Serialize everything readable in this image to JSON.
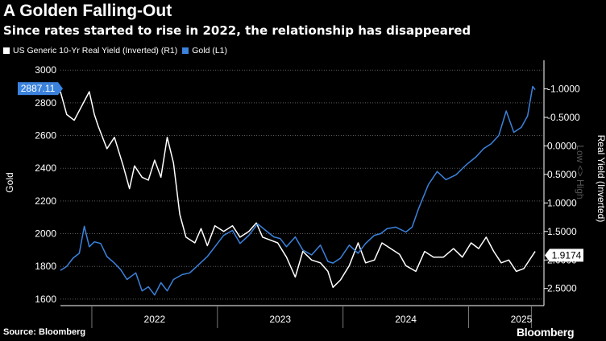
{
  "chart_data": {
    "type": "line",
    "title": "A Golden Falling-Out",
    "subtitle": "Since rates started to rise in 2022, the relationship has disappeared",
    "legend_position": "top-left",
    "source": "Source: Bloomberg",
    "brand": "Bloomberg",
    "left_axis": {
      "label": "Gold",
      "range": [
        1560,
        3060
      ],
      "ticks": [
        "1600",
        "1800",
        "2000",
        "2200",
        "2400",
        "2600",
        "2800",
        "3000"
      ]
    },
    "right_axis": {
      "label": "Real Yield (Inverted)",
      "annotation": "Low <> High",
      "inverted": true,
      "range": [
        -1.5,
        2.8
      ],
      "ticks": [
        "-1.0000",
        "-0.5000",
        "0.0000",
        "0.5000",
        "1.0000",
        "1.5000",
        "2.0000",
        "2.5000"
      ]
    },
    "x_axis": {
      "range": [
        2021.25,
        2025.1
      ],
      "ticks": [
        "2022",
        "2023",
        "2024",
        "2025"
      ],
      "tick_positions": [
        2021.5,
        2022.5,
        2023.5,
        2024.5,
        2025.0
      ],
      "label_positions": [
        2022.0,
        2023.0,
        2024.0,
        2024.92
      ]
    },
    "grid": true,
    "series": [
      {
        "name": "US Generic 10-Yr Real Yield (Inverted) (R1)",
        "axis": "right",
        "color": "#ffffff",
        "last_value_label": "1.9174",
        "x": [
          2021.25,
          2021.3,
          2021.36,
          2021.42,
          2021.48,
          2021.52,
          2021.55,
          2021.62,
          2021.68,
          2021.75,
          2021.8,
          2021.84,
          2021.9,
          2021.95,
          2022.0,
          2022.05,
          2022.1,
          2022.15,
          2022.2,
          2022.25,
          2022.32,
          2022.37,
          2022.42,
          2022.48,
          2022.55,
          2022.62,
          2022.68,
          2022.75,
          2022.81,
          2022.86,
          2022.92,
          2022.98,
          2023.05,
          2023.12,
          2023.18,
          2023.25,
          2023.32,
          2023.38,
          2023.42,
          2023.48,
          2023.55,
          2023.62,
          2023.68,
          2023.75,
          2023.81,
          2023.88,
          2023.95,
          2024.0,
          2024.08,
          2024.15,
          2024.22,
          2024.3,
          2024.38,
          2024.45,
          2024.52,
          2024.58,
          2024.64,
          2024.7,
          2024.76,
          2024.82,
          2024.88,
          2024.94,
          2025.0,
          2025.03
        ],
        "values": [
          -0.95,
          -0.55,
          -0.45,
          -0.7,
          -0.95,
          -0.55,
          -0.35,
          0.05,
          -0.15,
          0.35,
          0.75,
          0.35,
          0.55,
          0.6,
          0.25,
          0.55,
          -0.15,
          0.3,
          1.2,
          1.6,
          1.7,
          1.45,
          1.75,
          1.4,
          1.5,
          1.4,
          1.6,
          1.5,
          1.35,
          1.6,
          1.65,
          1.7,
          1.95,
          2.3,
          1.85,
          2.0,
          2.05,
          2.2,
          2.48,
          2.35,
          2.1,
          1.7,
          2.05,
          2.0,
          1.7,
          1.8,
          1.9,
          2.1,
          2.2,
          1.85,
          1.95,
          1.95,
          1.8,
          1.95,
          1.7,
          1.8,
          1.6,
          1.85,
          2.05,
          2.0,
          2.2,
          2.15,
          1.95,
          1.85
        ]
      },
      {
        "name": "Gold (L1)",
        "axis": "left",
        "color": "#3b82dc",
        "last_value_label": "2887.11",
        "x": [
          2021.25,
          2021.3,
          2021.35,
          2021.4,
          2021.44,
          2021.48,
          2021.52,
          2021.57,
          2021.62,
          2021.68,
          2021.73,
          2021.78,
          2021.85,
          2021.9,
          2021.95,
          2022.0,
          2022.05,
          2022.1,
          2022.15,
          2022.22,
          2022.28,
          2022.35,
          2022.42,
          2022.48,
          2022.55,
          2022.62,
          2022.68,
          2022.75,
          2022.82,
          2022.9,
          2022.95,
          2023.0,
          2023.05,
          2023.12,
          2023.18,
          2023.25,
          2023.32,
          2023.38,
          2023.42,
          2023.48,
          2023.55,
          2023.62,
          2023.68,
          2023.75,
          2023.8,
          2023.85,
          2023.92,
          2024.0,
          2024.05,
          2024.1,
          2024.18,
          2024.25,
          2024.32,
          2024.4,
          2024.48,
          2024.56,
          2024.62,
          2024.68,
          2024.74,
          2024.8,
          2024.86,
          2024.92,
          2024.97,
          2025.01,
          2025.03
        ],
        "values": [
          1775,
          1800,
          1850,
          1880,
          2045,
          1920,
          1950,
          1940,
          1860,
          1820,
          1780,
          1720,
          1760,
          1650,
          1675,
          1625,
          1700,
          1650,
          1720,
          1750,
          1760,
          1810,
          1860,
          1920,
          1990,
          2020,
          1940,
          1990,
          2060,
          2010,
          1980,
          1970,
          1920,
          1980,
          1900,
          1870,
          1930,
          1830,
          1820,
          1850,
          1930,
          1880,
          1940,
          1990,
          2000,
          2030,
          2040,
          2010,
          2040,
          2150,
          2300,
          2380,
          2330,
          2360,
          2420,
          2470,
          2520,
          2550,
          2600,
          2750,
          2620,
          2650,
          2720,
          2900,
          2880
        ]
      }
    ]
  }
}
